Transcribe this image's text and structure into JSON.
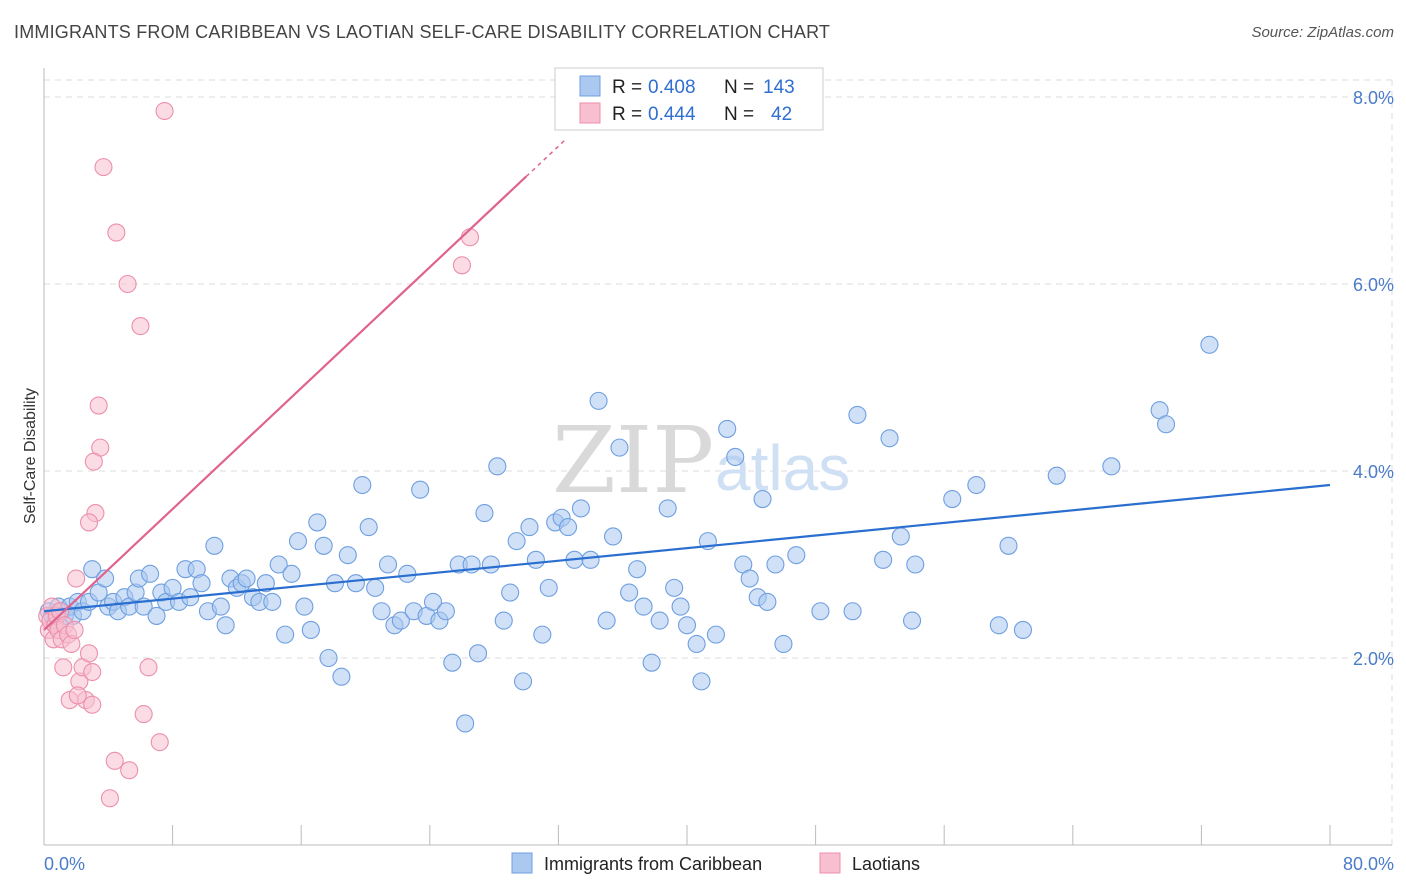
{
  "title": "IMMIGRANTS FROM CARIBBEAN VS LAOTIAN SELF-CARE DISABILITY CORRELATION CHART",
  "source": "Source: ZipAtlas.com",
  "watermark": {
    "zip": "ZIP",
    "atlas": "atlas"
  },
  "colors": {
    "blue_fill": "#aac8f0",
    "blue_stroke": "#6f9fe0",
    "blue_line": "#2a6fd0",
    "pink_fill": "#f7bfd0",
    "pink_stroke": "#ec8fab",
    "pink_line": "#e0638f",
    "grid": "#dddddd",
    "axis_text": "#4a7cc9"
  },
  "legend": {
    "rows": [
      {
        "r_label": "R =",
        "r_value": "0.408",
        "n_label": "N =",
        "n_value": "143"
      },
      {
        "r_label": "R =",
        "r_value": "0.444",
        "n_label": "N =",
        "n_value": "42"
      }
    ]
  },
  "bottom_legend": [
    "Immigrants from Caribbean",
    "Laotians"
  ],
  "chart_data": {
    "type": "scatter",
    "title": "IMMIGRANTS FROM CARIBBEAN VS LAOTIAN SELF-CARE DISABILITY CORRELATION CHART",
    "xlabel": "",
    "ylabel": "Self-Care Disability",
    "xlim": [
      0,
      80
    ],
    "ylim": [
      0,
      8
    ],
    "x_tick_labels": [
      "0.0%",
      "80.0%"
    ],
    "y_ticks": [
      2,
      4,
      6,
      8
    ],
    "y_tick_labels": [
      "2.0%",
      "4.0%",
      "6.0%",
      "8.0%"
    ],
    "grid": true,
    "series": [
      {
        "name": "Immigrants from Caribbean",
        "R": 0.408,
        "N": 143,
        "trend": {
          "x0": 0,
          "y0": 2.5,
          "x1": 80,
          "y1": 3.85
        },
        "points": [
          [
            0.3,
            2.5
          ],
          [
            0.5,
            2.45
          ],
          [
            0.7,
            2.4
          ],
          [
            0.9,
            2.55
          ],
          [
            1.1,
            2.5
          ],
          [
            1.3,
            2.45
          ],
          [
            1.6,
            2.55
          ],
          [
            1.8,
            2.45
          ],
          [
            2.1,
            2.6
          ],
          [
            2.4,
            2.5
          ],
          [
            2.8,
            2.6
          ],
          [
            3.0,
            2.95
          ],
          [
            3.4,
            2.7
          ],
          [
            3.8,
            2.85
          ],
          [
            4.0,
            2.55
          ],
          [
            4.3,
            2.6
          ],
          [
            4.6,
            2.5
          ],
          [
            5.0,
            2.65
          ],
          [
            5.3,
            2.55
          ],
          [
            5.7,
            2.7
          ],
          [
            5.9,
            2.85
          ],
          [
            6.2,
            2.55
          ],
          [
            6.6,
            2.9
          ],
          [
            7.0,
            2.45
          ],
          [
            7.3,
            2.7
          ],
          [
            7.6,
            2.6
          ],
          [
            8.0,
            2.75
          ],
          [
            8.4,
            2.6
          ],
          [
            8.8,
            2.95
          ],
          [
            9.1,
            2.65
          ],
          [
            9.5,
            2.95
          ],
          [
            9.8,
            2.8
          ],
          [
            10.2,
            2.5
          ],
          [
            10.6,
            3.2
          ],
          [
            11.0,
            2.55
          ],
          [
            11.3,
            2.35
          ],
          [
            11.6,
            2.85
          ],
          [
            12.0,
            2.75
          ],
          [
            12.3,
            2.8
          ],
          [
            12.6,
            2.85
          ],
          [
            13.0,
            2.65
          ],
          [
            13.4,
            2.6
          ],
          [
            13.8,
            2.8
          ],
          [
            14.2,
            2.6
          ],
          [
            14.6,
            3.0
          ],
          [
            15.0,
            2.25
          ],
          [
            15.4,
            2.9
          ],
          [
            15.8,
            3.25
          ],
          [
            16.2,
            2.55
          ],
          [
            16.6,
            2.3
          ],
          [
            17.0,
            3.45
          ],
          [
            17.4,
            3.2
          ],
          [
            17.7,
            2.0
          ],
          [
            18.1,
            2.8
          ],
          [
            18.5,
            1.8
          ],
          [
            18.9,
            3.1
          ],
          [
            19.4,
            2.8
          ],
          [
            19.8,
            3.85
          ],
          [
            20.2,
            3.4
          ],
          [
            20.6,
            2.75
          ],
          [
            21.0,
            2.5
          ],
          [
            21.4,
            3.0
          ],
          [
            21.8,
            2.35
          ],
          [
            22.2,
            2.4
          ],
          [
            22.6,
            2.9
          ],
          [
            23.0,
            2.5
          ],
          [
            23.4,
            3.8
          ],
          [
            23.8,
            2.45
          ],
          [
            24.2,
            2.6
          ],
          [
            24.6,
            2.4
          ],
          [
            25.0,
            2.5
          ],
          [
            25.4,
            1.95
          ],
          [
            25.8,
            3.0
          ],
          [
            26.2,
            1.3
          ],
          [
            26.6,
            3.0
          ],
          [
            27.0,
            2.05
          ],
          [
            27.4,
            3.55
          ],
          [
            27.8,
            3.0
          ],
          [
            28.2,
            4.05
          ],
          [
            28.6,
            2.4
          ],
          [
            29.0,
            2.7
          ],
          [
            29.4,
            3.25
          ],
          [
            29.8,
            1.75
          ],
          [
            30.2,
            3.4
          ],
          [
            30.6,
            3.05
          ],
          [
            31.0,
            2.25
          ],
          [
            31.4,
            2.75
          ],
          [
            31.8,
            3.45
          ],
          [
            32.2,
            3.5
          ],
          [
            32.6,
            3.4
          ],
          [
            33.0,
            3.05
          ],
          [
            33.4,
            3.6
          ],
          [
            34.0,
            3.05
          ],
          [
            34.5,
            4.75
          ],
          [
            35.0,
            2.4
          ],
          [
            35.4,
            3.3
          ],
          [
            35.8,
            4.25
          ],
          [
            36.4,
            2.7
          ],
          [
            36.9,
            2.95
          ],
          [
            37.3,
            2.55
          ],
          [
            37.8,
            1.95
          ],
          [
            38.3,
            2.4
          ],
          [
            38.8,
            3.6
          ],
          [
            39.2,
            2.75
          ],
          [
            39.6,
            2.55
          ],
          [
            40.0,
            2.35
          ],
          [
            40.6,
            2.15
          ],
          [
            40.9,
            1.75
          ],
          [
            41.3,
            3.25
          ],
          [
            41.8,
            2.25
          ],
          [
            42.5,
            4.45
          ],
          [
            43.0,
            4.15
          ],
          [
            43.5,
            3.0
          ],
          [
            43.9,
            2.85
          ],
          [
            44.4,
            2.65
          ],
          [
            44.7,
            3.7
          ],
          [
            45.0,
            2.6
          ],
          [
            45.5,
            3.0
          ],
          [
            46.0,
            2.15
          ],
          [
            46.8,
            3.1
          ],
          [
            48.3,
            2.5
          ],
          [
            50.3,
            2.5
          ],
          [
            50.6,
            4.6
          ],
          [
            52.2,
            3.05
          ],
          [
            52.6,
            4.35
          ],
          [
            53.3,
            3.3
          ],
          [
            54.0,
            2.4
          ],
          [
            54.2,
            3.0
          ],
          [
            56.5,
            3.7
          ],
          [
            58.0,
            3.85
          ],
          [
            59.4,
            2.35
          ],
          [
            60.0,
            3.2
          ],
          [
            60.9,
            2.3
          ],
          [
            63.0,
            3.95
          ],
          [
            66.4,
            4.05
          ],
          [
            69.4,
            4.65
          ],
          [
            69.8,
            4.5
          ],
          [
            72.5,
            5.35
          ]
        ]
      },
      {
        "name": "Laotians",
        "R": 0.444,
        "N": 42,
        "trend": {
          "x0": 0,
          "y0": 2.3,
          "x1": 30,
          "y1": 7.15
        },
        "points": [
          [
            0.2,
            2.45
          ],
          [
            0.3,
            2.3
          ],
          [
            0.4,
            2.4
          ],
          [
            0.5,
            2.55
          ],
          [
            0.6,
            2.2
          ],
          [
            0.7,
            2.35
          ],
          [
            0.8,
            2.45
          ],
          [
            0.9,
            2.3
          ],
          [
            1.0,
            2.5
          ],
          [
            1.1,
            2.2
          ],
          [
            1.3,
            2.35
          ],
          [
            1.5,
            2.25
          ],
          [
            1.7,
            2.15
          ],
          [
            1.9,
            2.3
          ],
          [
            2.0,
            2.85
          ],
          [
            2.2,
            1.75
          ],
          [
            2.4,
            1.9
          ],
          [
            2.6,
            1.55
          ],
          [
            2.8,
            2.05
          ],
          [
            3.0,
            1.5
          ],
          [
            1.2,
            1.9
          ],
          [
            1.6,
            1.55
          ],
          [
            2.1,
            1.6
          ],
          [
            3.2,
            3.55
          ],
          [
            3.5,
            4.25
          ],
          [
            3.4,
            4.7
          ],
          [
            3.1,
            4.1
          ],
          [
            2.8,
            3.45
          ],
          [
            3.7,
            7.25
          ],
          [
            4.5,
            6.55
          ],
          [
            5.2,
            6.0
          ],
          [
            6.0,
            5.55
          ],
          [
            6.5,
            1.9
          ],
          [
            7.5,
            7.85
          ],
          [
            4.4,
            0.9
          ],
          [
            4.1,
            0.5
          ],
          [
            5.3,
            0.8
          ],
          [
            6.2,
            1.4
          ],
          [
            7.2,
            1.1
          ],
          [
            26.5,
            6.5
          ],
          [
            26.0,
            6.2
          ],
          [
            3.0,
            1.85
          ]
        ]
      }
    ]
  }
}
